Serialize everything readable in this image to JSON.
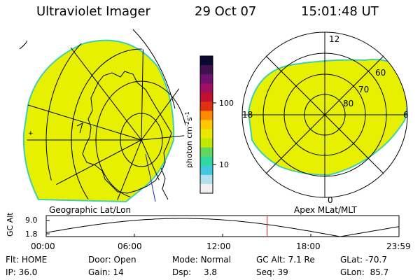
{
  "header": {
    "instrument": "Ultraviolet Imager",
    "date": "29 Oct 07",
    "time": "15:01:48 UT"
  },
  "colorbar": {
    "title": "photon cm^-2 s^-1",
    "ticks": [
      "100",
      "10"
    ],
    "colors": [
      "#0a0a30",
      "#401050",
      "#701070",
      "#a01060",
      "#c01030",
      "#e03010",
      "#ff8a00",
      "#ffc800",
      "#e8e800",
      "#c0e800",
      "#60d860",
      "#30d8a0",
      "#40c8e0",
      "#b0e0f0",
      "#f0f0f0"
    ]
  },
  "left_panel": {
    "label": "Geographic Lat/Lon",
    "fill_color": "#e6f000",
    "edge_color": "#40d0b0"
  },
  "right_panel": {
    "label": "Apex MLat/MLT",
    "fill_color": "#e6f000",
    "mlt_labels": [
      "12",
      "18",
      "6",
      "0"
    ],
    "lat_labels": [
      "60",
      "70",
      "80"
    ]
  },
  "altitude_plot": {
    "ylabel": "GC Alt",
    "y_ticks": [
      "9.0",
      "1.8"
    ],
    "x_ticks": [
      "00:00",
      "06:00",
      "12:00",
      "18:00",
      "23:59"
    ],
    "current_time_marker_color": "#d02020",
    "current_time_hours": 15.03
  },
  "info": {
    "flt_label": "Flt:",
    "flt_value": "HOME",
    "ip_label": "IP:",
    "ip_value": "36.0",
    "door_label": "Door:",
    "door_value": "Open",
    "gain_label": "Gain:",
    "gain_value": "14",
    "mode_label": "Mode:",
    "mode_value": "Normal",
    "dsp_label": "Dsp:",
    "dsp_value": "3.8",
    "gcalt_label": "GC Alt:",
    "gcalt_value": "7.1 Re",
    "seq_label": "Seq:",
    "seq_value": "39",
    "glat_label": "GLat:",
    "glat_value": "-70.7",
    "glon_label": "GLon:",
    "glon_value": "85.7"
  }
}
